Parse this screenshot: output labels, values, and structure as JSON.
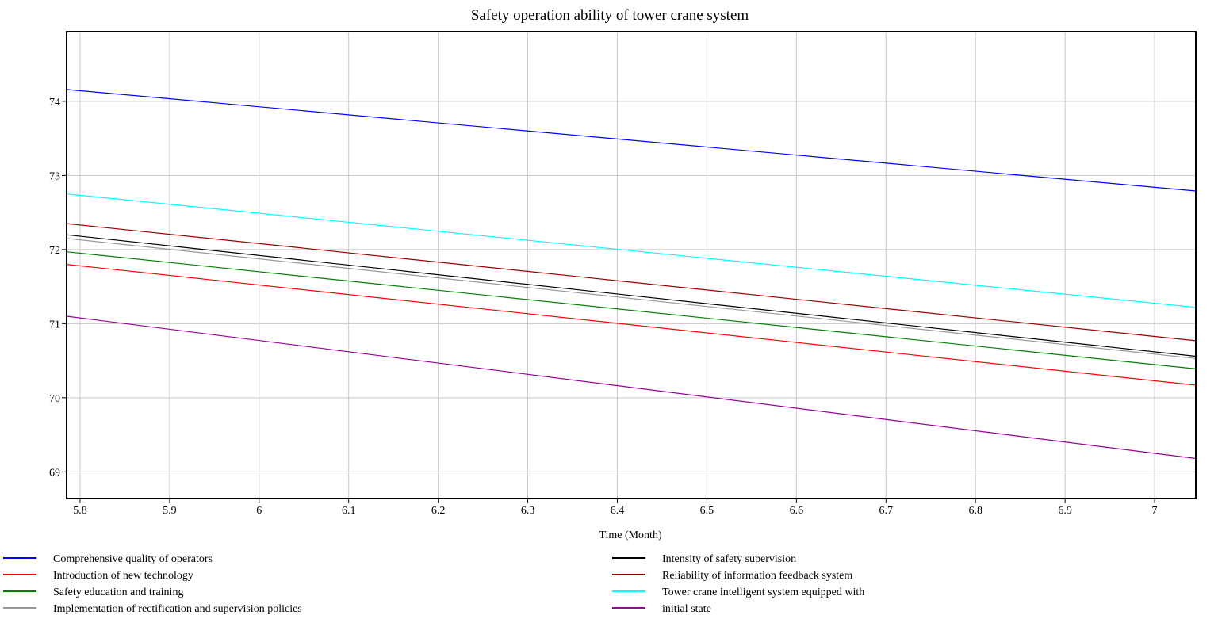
{
  "chart_data": {
    "type": "line",
    "title": "Safety operation ability of tower crane system",
    "xlabel": "Time (Month)",
    "ylabel": "",
    "xlim": [
      5.785,
      7.046
    ],
    "ylim": [
      68.64,
      74.94
    ],
    "x_ticks": [
      5.8,
      5.9,
      6.0,
      6.1,
      6.2,
      6.3,
      6.4,
      6.5,
      6.6,
      6.7,
      6.8,
      6.9,
      7.0
    ],
    "x_tick_labels": [
      "5.8",
      "5.9",
      "6",
      "6.1",
      "6.2",
      "6.3",
      "6.4",
      "6.5",
      "6.6",
      "6.7",
      "6.8",
      "6.9",
      "7"
    ],
    "y_ticks": [
      69,
      70,
      71,
      72,
      73,
      74
    ],
    "y_tick_labels": [
      "69",
      "70",
      "71",
      "72",
      "73",
      "74"
    ],
    "grid": true,
    "legend_position": "bottom",
    "series": [
      {
        "name": "Comprehensive quality of operators",
        "color": "#0000ff",
        "x": [
          5.785,
          7.046
        ],
        "y": [
          74.16,
          72.79
        ]
      },
      {
        "name": "Introduction of new technology",
        "color": "#ff0000",
        "x": [
          5.785,
          7.046
        ],
        "y": [
          71.8,
          70.17
        ]
      },
      {
        "name": "Safety education and training",
        "color": "#008000",
        "x": [
          5.785,
          7.046
        ],
        "y": [
          71.97,
          70.39
        ]
      },
      {
        "name": "Implementation of rectification and supervision policies",
        "color": "#999999",
        "x": [
          5.785,
          7.046
        ],
        "y": [
          72.15,
          70.53
        ]
      },
      {
        "name": "Intensity of safety supervision",
        "color": "#000000",
        "x": [
          5.785,
          7.046
        ],
        "y": [
          72.2,
          70.56
        ]
      },
      {
        "name": "Reliability of information feedback system",
        "color": "#990000",
        "x": [
          5.785,
          7.046
        ],
        "y": [
          72.35,
          70.77
        ]
      },
      {
        "name": "Tower crane intelligent system equipped with",
        "color": "#00ffff",
        "x": [
          5.785,
          7.046
        ],
        "y": [
          72.75,
          71.22
        ]
      },
      {
        "name": "initial state",
        "color": "#990099",
        "x": [
          5.785,
          7.046
        ],
        "y": [
          71.1,
          69.18
        ]
      }
    ]
  }
}
